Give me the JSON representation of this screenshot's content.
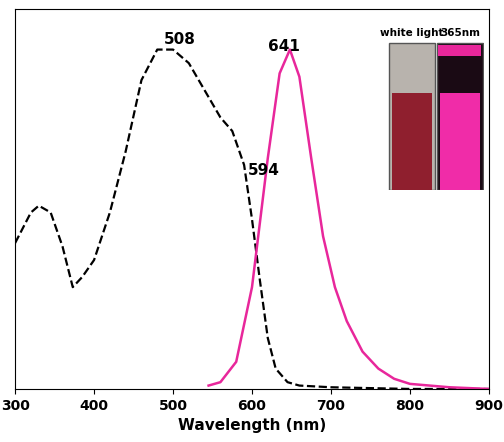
{
  "chart_data": {
    "type": "line",
    "x_label": "Wavelength (nm)",
    "xlim": [
      300,
      900
    ],
    "xticks": [
      300,
      400,
      500,
      600,
      700,
      800,
      900
    ],
    "ylim": [
      0,
      1.12
    ],
    "tick_labels": "x",
    "grid": false,
    "series": [
      {
        "color": "#000000",
        "line_style": "dashed",
        "x": [
          300,
          320,
          330,
          345,
          360,
          373,
          385,
          400,
          420,
          440,
          460,
          480,
          500,
          520,
          540,
          560,
          575,
          590,
          600,
          610,
          620,
          630,
          645,
          660,
          700,
          800,
          900
        ],
        "values": [
          0.43,
          0.52,
          0.54,
          0.52,
          0.42,
          0.3,
          0.33,
          0.38,
          0.52,
          0.7,
          0.91,
          1.0,
          1.0,
          0.96,
          0.88,
          0.8,
          0.76,
          0.66,
          0.5,
          0.32,
          0.15,
          0.06,
          0.02,
          0.01,
          0.005,
          0.0,
          0.0
        ]
      },
      {
        "color": "#e8279b",
        "line_style": "solid",
        "x": [
          545,
          560,
          580,
          600,
          620,
          635,
          648,
          660,
          675,
          690,
          705,
          720,
          740,
          760,
          780,
          800,
          850,
          900
        ],
        "values": [
          0.01,
          0.02,
          0.08,
          0.3,
          0.68,
          0.93,
          1.0,
          0.92,
          0.68,
          0.45,
          0.3,
          0.2,
          0.11,
          0.06,
          0.03,
          0.015,
          0.005,
          0.0
        ]
      }
    ],
    "annotations": [
      {
        "text": "508",
        "series": 0
      },
      {
        "text": "594",
        "series": 0
      },
      {
        "text": "641",
        "series": 1
      }
    ],
    "inset": {
      "labels": [
        "white light",
        "365nm"
      ]
    }
  }
}
